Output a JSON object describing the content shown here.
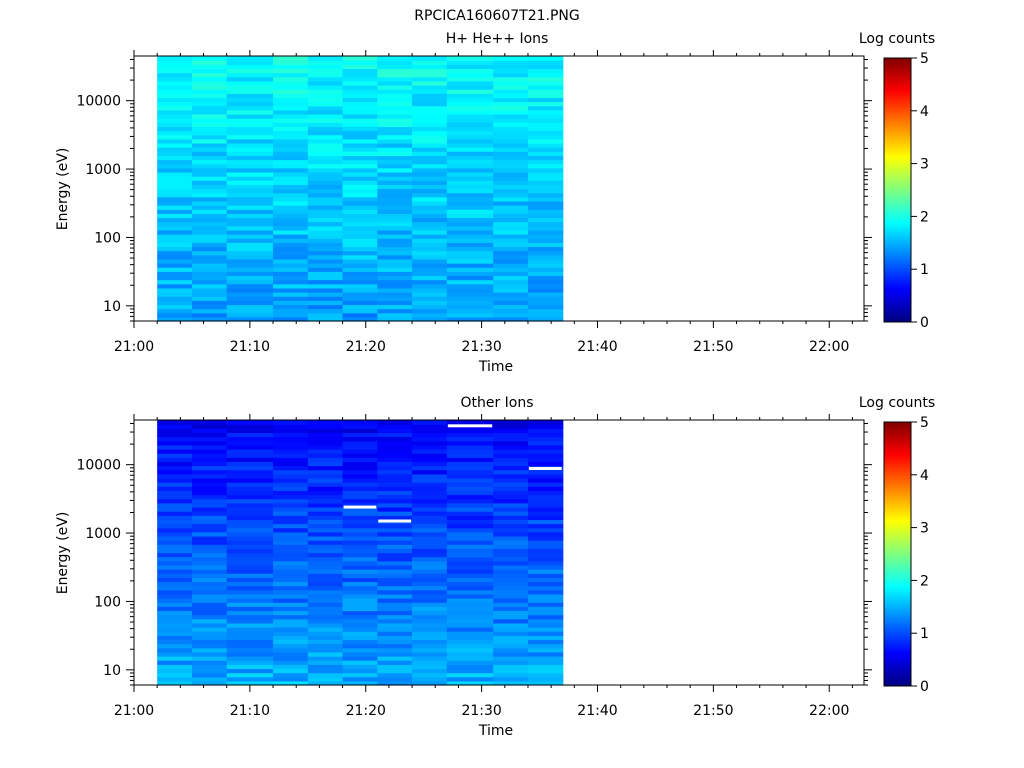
{
  "figure_title": "RPCICA160607T21.PNG",
  "chart_data": [
    {
      "type": "heatmap",
      "title": "H+ He++ Ions",
      "xlabel": "Time",
      "ylabel": "Energy (eV)",
      "x_ticks": [
        "21:00",
        "21:10",
        "21:20",
        "21:30",
        "21:40",
        "21:50",
        "22:00"
      ],
      "x_range": [
        "21:00",
        "22:03"
      ],
      "data_time_range": [
        "21:02",
        "21:37"
      ],
      "y_ticks": [
        10,
        100,
        1000,
        10000
      ],
      "y_scale": "log",
      "ylim": [
        6,
        45000
      ],
      "colorbar": {
        "label": "Log counts",
        "ticks": [
          0,
          1,
          2,
          3,
          4,
          5
        ],
        "range": [
          0,
          5
        ],
        "colormap": "jet"
      },
      "time_columns": [
        "21:02",
        "21:05",
        "21:08",
        "21:12",
        "21:15",
        "21:18",
        "21:21",
        "21:24",
        "21:27",
        "21:31",
        "21:34"
      ],
      "energy_rows_approx": "64 log-spaced energy bins from ~6 eV to ~45000 eV",
      "value_profile": {
        "low_energy": 1.4,
        "high_energy": 1.9,
        "note": "values ~1.2–2.0 log counts across all bins"
      },
      "missing_cells": []
    },
    {
      "type": "heatmap",
      "title": "Other Ions",
      "xlabel": "Time",
      "ylabel": "Energy (eV)",
      "x_ticks": [
        "21:00",
        "21:10",
        "21:20",
        "21:30",
        "21:40",
        "21:50",
        "22:00"
      ],
      "x_range": [
        "21:00",
        "22:03"
      ],
      "data_time_range": [
        "21:02",
        "21:37"
      ],
      "y_ticks": [
        10,
        100,
        1000,
        10000
      ],
      "y_scale": "log",
      "ylim": [
        6,
        45000
      ],
      "colorbar": {
        "label": "Log counts",
        "ticks": [
          0,
          1,
          2,
          3,
          4,
          5
        ],
        "range": [
          0,
          5
        ],
        "colormap": "jet"
      },
      "time_columns": [
        "21:02",
        "21:05",
        "21:08",
        "21:12",
        "21:15",
        "21:18",
        "21:21",
        "21:24",
        "21:27",
        "21:31",
        "21:34"
      ],
      "energy_rows_approx": "64 log-spaced energy bins from ~6 eV to ~45000 eV",
      "value_profile": {
        "low_energy": 1.5,
        "high_energy": 0.6,
        "note": "values ~0.4–1.7 log counts; higher at low energy"
      },
      "missing_cells": [
        {
          "time": "21:18",
          "energy_eV": 2400
        },
        {
          "time": "21:21",
          "energy_eV": 1500
        },
        {
          "time": "21:27",
          "energy_eV": 37000
        },
        {
          "time": "21:34",
          "energy_eV": 8800
        }
      ]
    }
  ]
}
